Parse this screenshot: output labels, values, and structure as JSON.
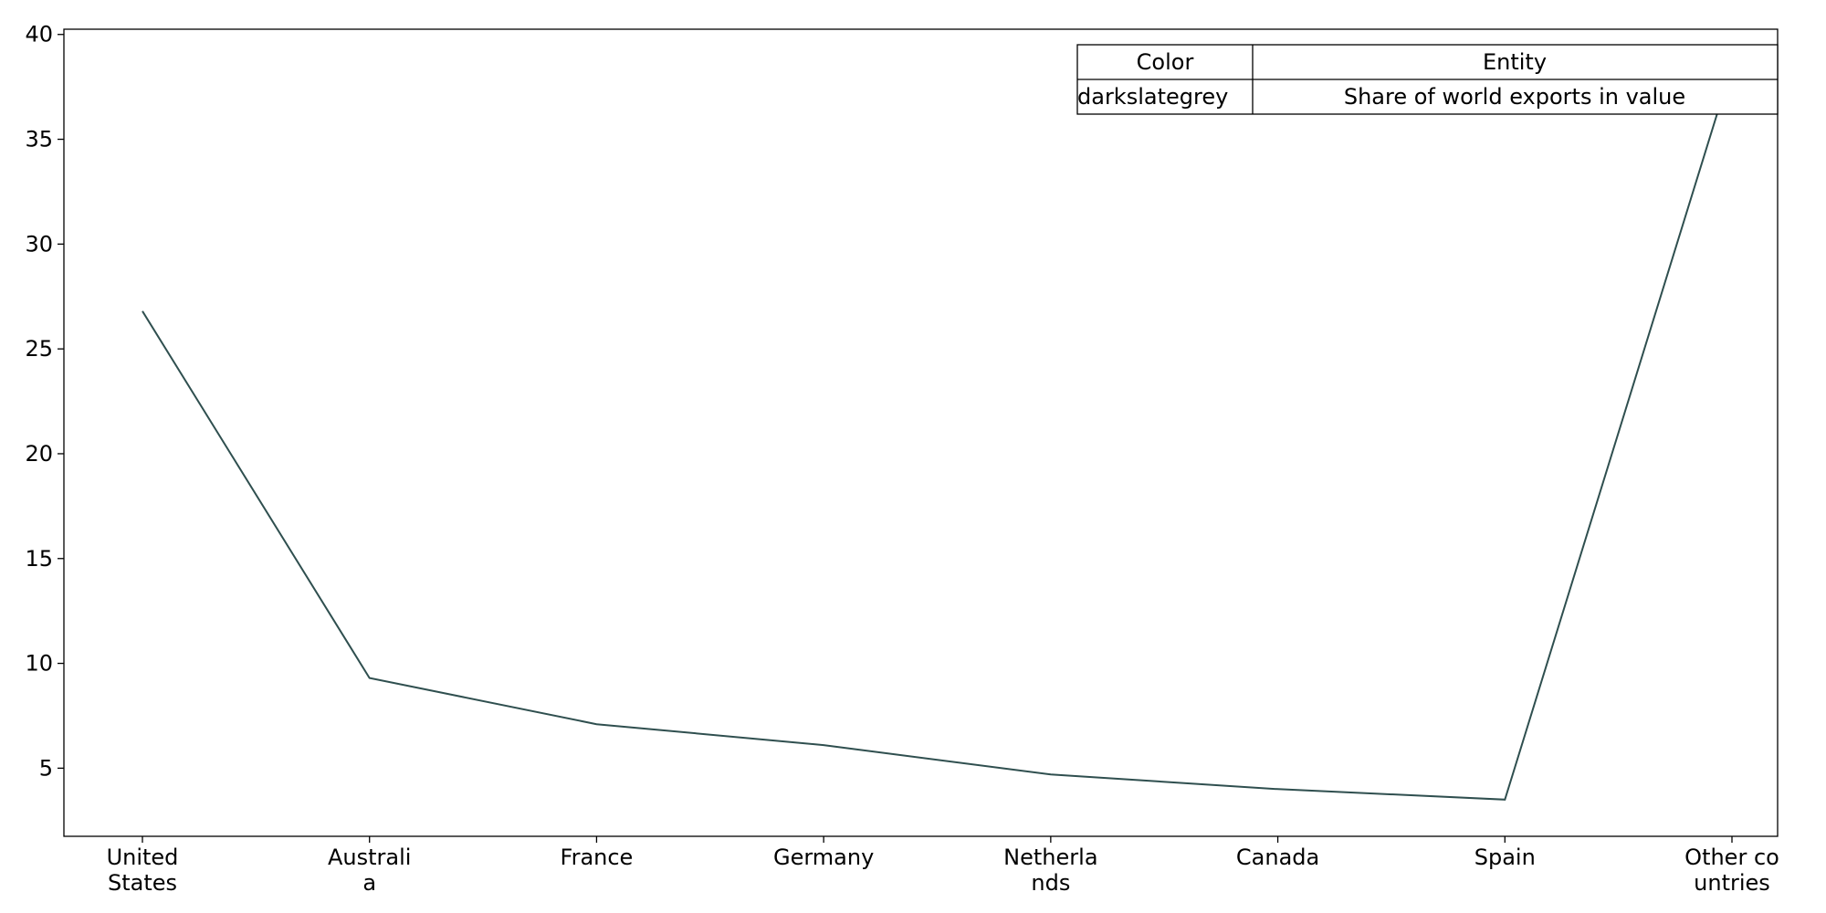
{
  "chart_data": {
    "type": "line",
    "categories": [
      [
        "United",
        "States"
      ],
      [
        "Australi",
        "a"
      ],
      [
        "France"
      ],
      [
        "Germany"
      ],
      [
        "Netherla",
        "nds"
      ],
      [
        "Canada"
      ],
      [
        "Spain"
      ],
      [
        "Other co",
        "untries"
      ]
    ],
    "series": [
      {
        "name": "Share of world exports in value",
        "color": "#2f4f4f",
        "values": [
          26.8,
          9.3,
          7.1,
          6.1,
          4.7,
          4.0,
          3.5,
          38.5
        ]
      }
    ],
    "yticks": [
      5,
      10,
      15,
      20,
      25,
      30,
      35,
      40
    ],
    "ylim": [
      1.75,
      40.25
    ],
    "grid": false,
    "legend": {
      "placement": "top-right",
      "header": [
        "Color",
        "Entity"
      ],
      "rows": [
        [
          "darkslategrey",
          "Share of world exports in value"
        ]
      ]
    }
  }
}
